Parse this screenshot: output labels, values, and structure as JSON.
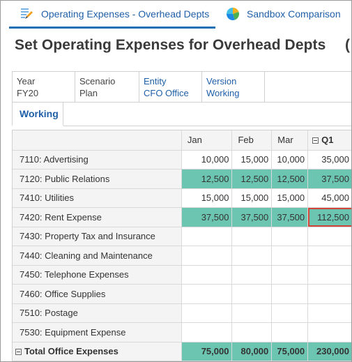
{
  "tabs": [
    {
      "label": "Operating Expenses - Overhead Depts",
      "icon": "pencil-form-icon",
      "active": true
    },
    {
      "label": "Sandbox Comparison",
      "icon": "pie-chart-icon",
      "active": false
    }
  ],
  "page_title": "Set Operating Expenses for Overhead Depts",
  "page_title_edge": "(",
  "pov": [
    {
      "label": "Year",
      "value": "FY20",
      "link": false
    },
    {
      "label": "Scenario",
      "value": "Plan",
      "link": false
    },
    {
      "label": "Entity",
      "value": "CFO Office",
      "link": true
    },
    {
      "label": "Version",
      "value": "Working",
      "link": true
    }
  ],
  "view_tab": "Working",
  "grid": {
    "columns": [
      "Jan",
      "Feb",
      "Mar",
      "Q1"
    ],
    "rows": [
      {
        "label": "7110: Advertising",
        "values": [
          "10,000",
          "15,000",
          "10,000",
          "35,000"
        ],
        "highlight": false
      },
      {
        "label": "7120: Public Relations",
        "values": [
          "12,500",
          "12,500",
          "12,500",
          "37,500"
        ],
        "highlight": true
      },
      {
        "label": "7410: Utilities",
        "values": [
          "15,000",
          "15,000",
          "15,000",
          "45,000"
        ],
        "highlight": false
      },
      {
        "label": "7420: Rent Expense",
        "values": [
          "37,500",
          "37,500",
          "37,500",
          "112,500"
        ],
        "highlight": true
      },
      {
        "label": "7430: Property Tax and Insurance",
        "values": [
          "",
          "",
          "",
          ""
        ],
        "highlight": false
      },
      {
        "label": "7440: Cleaning and Maintenance",
        "values": [
          "",
          "",
          "",
          ""
        ],
        "highlight": false
      },
      {
        "label": "7450: Telephone Expenses",
        "values": [
          "",
          "",
          "",
          ""
        ],
        "highlight": false
      },
      {
        "label": "7460: Office Supplies",
        "values": [
          "",
          "",
          "",
          ""
        ],
        "highlight": false
      },
      {
        "label": "7510: Postage",
        "values": [
          "",
          "",
          "",
          ""
        ],
        "highlight": false
      },
      {
        "label": "7530: Equipment Expense",
        "values": [
          "",
          "",
          "",
          ""
        ],
        "highlight": false
      },
      {
        "label": "Total Office Expenses",
        "values": [
          "75,000",
          "80,000",
          "75,000",
          "230,000"
        ],
        "highlight": true,
        "total": true
      }
    ]
  },
  "colors": {
    "accent": "#1f6fb5",
    "highlight": "#6cc5b0",
    "selection": "#d0453a"
  }
}
